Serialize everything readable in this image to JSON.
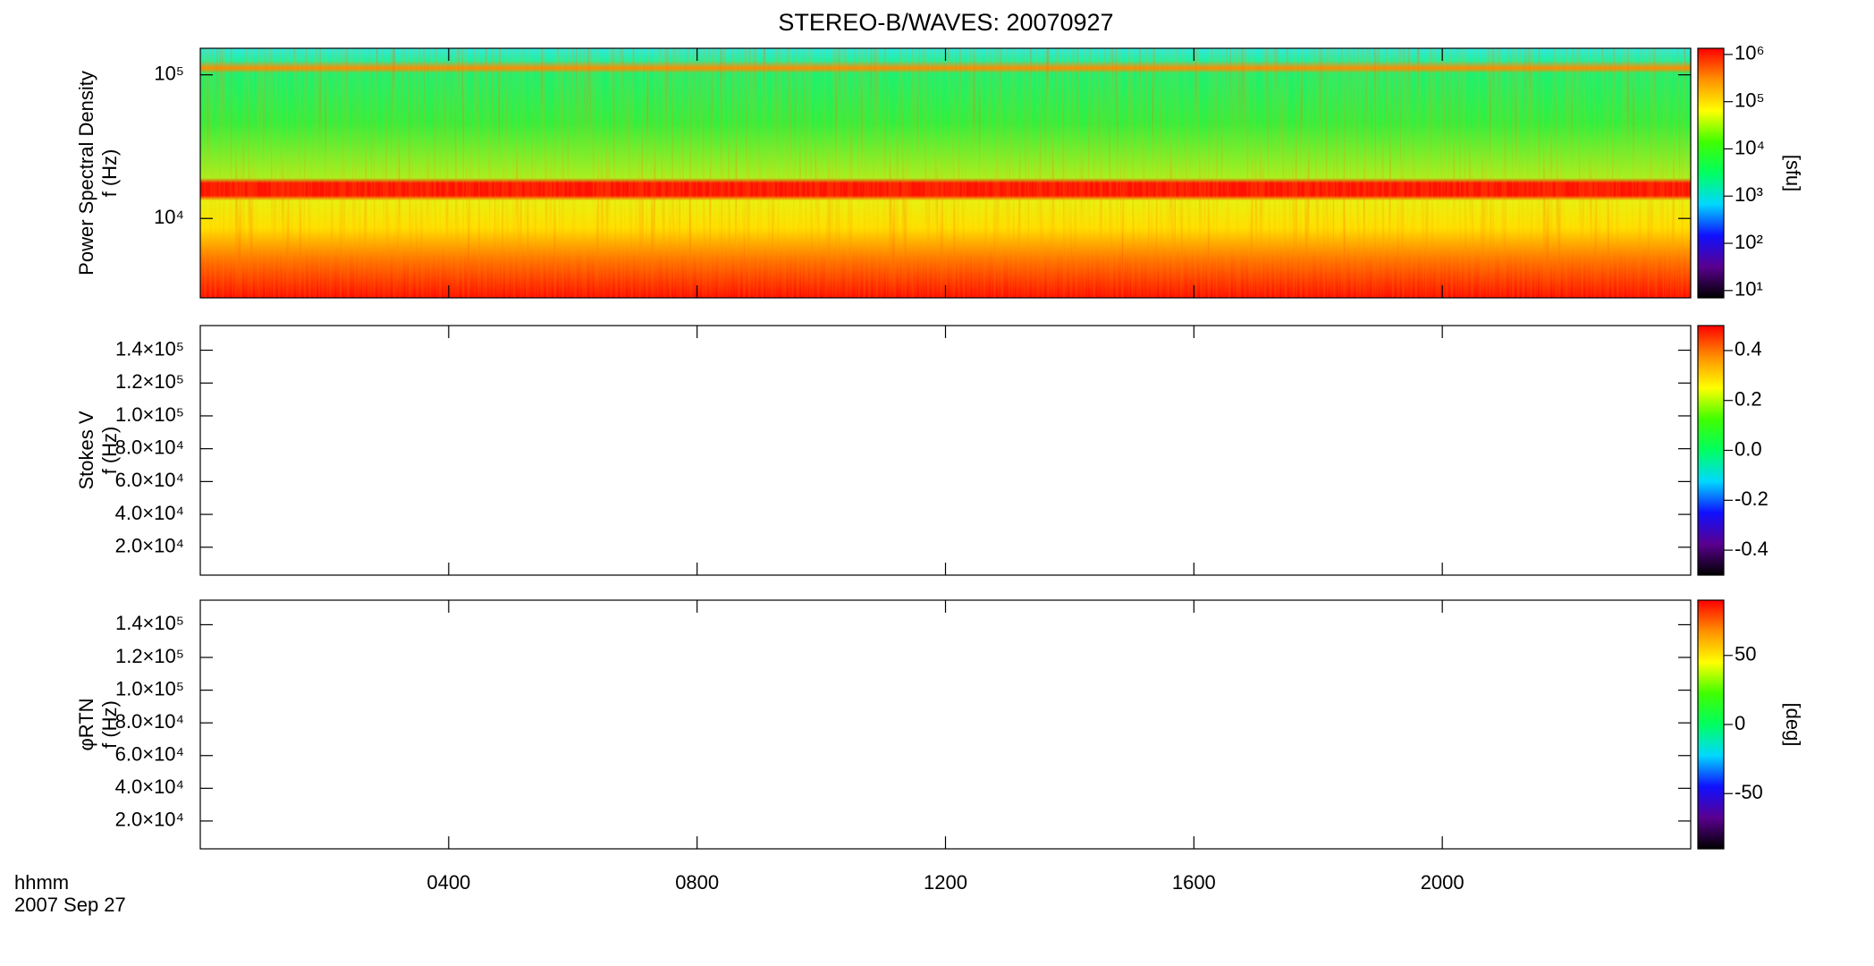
{
  "chart_data": [
    {
      "type": "heatmap",
      "title": "STEREO-B/WAVES: 20070927",
      "ylabel": [
        "Power Spectral Density",
        "f (Hz)"
      ],
      "yscale": "log",
      "ylim": [
        2800,
        153000
      ],
      "yticks": [
        {
          "value": 10000,
          "label": "10⁴"
        },
        {
          "value": 100000,
          "label": "10⁵"
        }
      ],
      "xlim": [
        0,
        24
      ],
      "xticks": [
        4,
        8,
        12,
        16,
        20
      ],
      "colorbar": {
        "label": "[sfu]",
        "scale": "log",
        "lim": [
          7,
          1350000
        ],
        "ticks": [
          {
            "value": 10,
            "label": "10¹"
          },
          {
            "value": 100,
            "label": "10²"
          },
          {
            "value": 1000,
            "label": "10³"
          },
          {
            "value": 10000,
            "label": "10⁴"
          },
          {
            "value": 100000,
            "label": "10⁵"
          },
          {
            "value": 1000000,
            "label": "10⁶"
          }
        ]
      },
      "colormap": [
        "#000000",
        "#5a0090",
        "#1010ff",
        "#00d8ff",
        "#00ff60",
        "#40ff00",
        "#ffff00",
        "#ff9000",
        "#ff0000"
      ]
    },
    {
      "type": "heatmap",
      "ylabel": [
        "Stokes V",
        "f (Hz)"
      ],
      "yscale": "linear",
      "ylim": [
        3000,
        155000
      ],
      "yticks": [
        {
          "value": 20000,
          "label": "2.0×10⁴"
        },
        {
          "value": 40000,
          "label": "4.0×10⁴"
        },
        {
          "value": 60000,
          "label": "6.0×10⁴"
        },
        {
          "value": 80000,
          "label": "8.0×10⁴"
        },
        {
          "value": 100000,
          "label": "1.0×10⁵"
        },
        {
          "value": 120000,
          "label": "1.2×10⁵"
        },
        {
          "value": 140000,
          "label": "1.4×10⁵"
        }
      ],
      "xlim": [
        0,
        24
      ],
      "xticks": [
        4,
        8,
        12,
        16,
        20
      ],
      "colorbar": {
        "scale": "linear",
        "lim": [
          -0.5,
          0.5
        ],
        "ticks": [
          -0.4,
          -0.2,
          {
            "value": 0,
            "label": "0.0"
          },
          0.2,
          0.4
        ]
      },
      "colormap": [
        "#000000",
        "#5a0090",
        "#1010ff",
        "#00d8ff",
        "#00ff60",
        "#40ff00",
        "#ffff00",
        "#ff9000",
        "#ff0000"
      ]
    },
    {
      "type": "heatmap",
      "ylabel": [
        "φRTN",
        "f (Hz)"
      ],
      "yscale": "linear",
      "ylim": [
        3000,
        155000
      ],
      "yticks": [
        {
          "value": 20000,
          "label": "2.0×10⁴"
        },
        {
          "value": 40000,
          "label": "4.0×10⁴"
        },
        {
          "value": 60000,
          "label": "6.0×10⁴"
        },
        {
          "value": 80000,
          "label": "8.0×10⁴"
        },
        {
          "value": 100000,
          "label": "1.0×10⁵"
        },
        {
          "value": 120000,
          "label": "1.2×10⁵"
        },
        {
          "value": 140000,
          "label": "1.4×10⁵"
        }
      ],
      "xlim": [
        0,
        24
      ],
      "xticks": [
        {
          "value": 4,
          "label": "0400"
        },
        {
          "value": 8,
          "label": "0800"
        },
        {
          "value": 12,
          "label": "1200"
        },
        {
          "value": 16,
          "label": "1600"
        },
        {
          "value": 20,
          "label": "2000"
        }
      ],
      "xlabel": [
        "hhmm",
        "2007 Sep 27"
      ],
      "colorbar": {
        "label": "[deg]",
        "scale": "linear",
        "lim": [
          -90,
          90
        ],
        "ticks": [
          -50,
          0,
          50
        ]
      },
      "colormap": [
        "#000000",
        "#5a0090",
        "#1010ff",
        "#00d8ff",
        "#00ff60",
        "#40ff00",
        "#ffff00",
        "#ff9000",
        "#ff0000"
      ]
    }
  ]
}
